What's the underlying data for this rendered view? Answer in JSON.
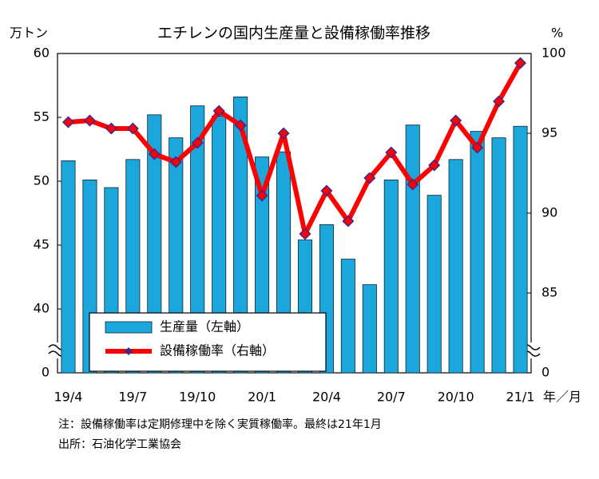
{
  "chart_data": {
    "type": "bar_line",
    "title": "エチレンの国内生産量と設備稼働率推移",
    "y_label": "万トン",
    "y2_label": "%",
    "x_label": "年／月",
    "categories": [
      "19/4",
      null,
      null,
      "19/7",
      null,
      null,
      "19/10",
      null,
      null,
      "20/1",
      null,
      null,
      "20/4",
      null,
      null,
      "20/7",
      null,
      null,
      "20/10",
      null,
      null,
      "21/1"
    ],
    "series": [
      {
        "name": "生産量（左軸）",
        "type": "bar",
        "color": "#1ba7dc",
        "axis": "y",
        "values": [
          51.6,
          50.1,
          49.5,
          51.7,
          55.2,
          53.4,
          55.9,
          55.1,
          56.6,
          51.9,
          52.3,
          45.4,
          46.6,
          43.9,
          41.9,
          50.1,
          54.4,
          48.9,
          51.7,
          53.9,
          53.4,
          54.3
        ]
      },
      {
        "name": "設備稼働率（右軸）",
        "type": "line",
        "color": "#ff0000",
        "axis": "y2",
        "values": [
          95.7,
          95.8,
          95.3,
          95.3,
          93.7,
          93.2,
          94.4,
          96.4,
          95.5,
          91.1,
          95.0,
          88.7,
          91.4,
          89.5,
          92.2,
          93.8,
          91.8,
          93.0,
          95.8,
          94.1,
          97.0,
          99.4
        ]
      }
    ],
    "ylim": [
      0,
      60
    ],
    "yticks": [
      0,
      40,
      45,
      50,
      55,
      60
    ],
    "y2lim": [
      0,
      100
    ],
    "y2ticks": [
      0,
      85,
      90,
      95,
      100
    ],
    "axis_break": true,
    "grid": false,
    "legend": "lower left",
    "notes": [
      "注：設備稼働率は定期修理中を除く実質稼働率。最終は21年1月",
      "出所：石油化学工業協会"
    ]
  }
}
